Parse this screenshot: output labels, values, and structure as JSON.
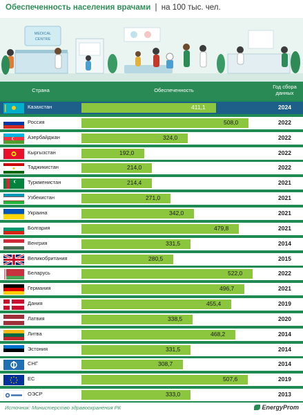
{
  "title": {
    "bold": "Обеспеченность населения врачами",
    "separator": "|",
    "unit": "на 100 тыс. чел."
  },
  "illustration": {
    "sign_line1": "MEDICAL",
    "sign_line2": "CENTRE"
  },
  "columns": {
    "country": "Страна",
    "value": "Обеспеченность",
    "year_line1": "Год сбора",
    "year_line2": "данных"
  },
  "highlight_color": "#1d5f88",
  "bar_color": "#8cc63f",
  "header_color": "#2a8a55",
  "chart_data": {
    "type": "bar",
    "orientation": "horizontal",
    "categories": [
      "Казахстан",
      "Россия",
      "Азербайджан",
      "Кыргызстан",
      "Таджикистан",
      "Туркменистан",
      "Узбекистан",
      "Украина",
      "Болгария",
      "Венгрия",
      "Великобритания",
      "Беларусь",
      "Германия",
      "Дания",
      "Латвия",
      "Литва",
      "Эстония",
      "СНГ",
      "ЕС",
      "ОЭСР"
    ],
    "value_labels": [
      "411,1",
      "508,0",
      "324,0",
      "192,0",
      "214,0",
      "214,4",
      "271,0",
      "342,0",
      "479,8",
      "331,5",
      "280,5",
      "522,0",
      "496,7",
      "455,4",
      "338,5",
      "468,2",
      "331,5",
      "308,7",
      "507,6",
      "333,0"
    ],
    "values": [
      411.1,
      508.0,
      324.0,
      192.0,
      214.0,
      214.4,
      271.0,
      342.0,
      479.8,
      331.5,
      280.5,
      522.0,
      496.7,
      455.4,
      338.5,
      468.2,
      331.5,
      308.7,
      507.6,
      333.0
    ],
    "years": [
      "2024",
      "2022",
      "2022",
      "2022",
      "2022",
      "2021",
      "2021",
      "2021",
      "2021",
      "2014",
      "2015",
      "2022",
      "2021",
      "2019",
      "2020",
      "2014",
      "2014",
      "2014",
      "2019",
      "2013"
    ],
    "flags": [
      "kazakhstan-flag",
      "russia-flag",
      "azerbaijan-flag",
      "kyrgyzstan-flag",
      "tajikistan-flag",
      "turkmenistan-flag",
      "uzbekistan-flag",
      "ukraine-flag",
      "bulgaria-flag",
      "hungary-flag",
      "uk-flag",
      "belarus-flag",
      "germany-flag",
      "denmark-flag",
      "latvia-flag",
      "lithuania-flag",
      "estonia-flag",
      "cis-flag",
      "eu-flag",
      "oecd-logo"
    ],
    "highlight_index": 0
  },
  "footer": {
    "source": "Источник: Министерство здравоохранения РК",
    "logo": "EnergyProm"
  }
}
